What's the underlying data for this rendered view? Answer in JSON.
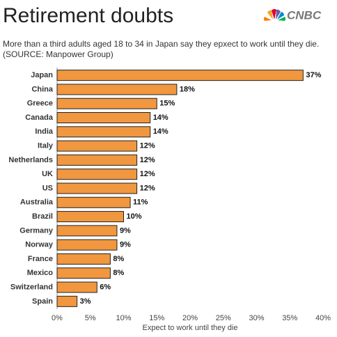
{
  "chart_data": {
    "type": "bar",
    "orientation": "horizontal",
    "title": "Retirement doubts",
    "brand": "CNBC",
    "subtitle": [
      "More than a third adults aged 18 to 34 in Japan say they epxect to work until they die.",
      "(SOURCE: Manpower Group)"
    ],
    "x_label": "Expect to work until they die",
    "categories": [
      "Japan",
      "China",
      "Greece",
      "Canada",
      "India",
      "Italy",
      "Netherlands",
      "UK",
      "US",
      "Australia",
      "Brazil",
      "Germany",
      "Norway",
      "France",
      "Mexico",
      "Switzerland",
      "Spain"
    ],
    "values": [
      37,
      18,
      15,
      14,
      14,
      12,
      12,
      12,
      12,
      11,
      10,
      9,
      9,
      8,
      8,
      6,
      3
    ],
    "value_labels": [
      "37%",
      "18%",
      "15%",
      "14%",
      "14%",
      "12%",
      "12%",
      "12%",
      "12%",
      "11%",
      "10%",
      "9%",
      "9%",
      "8%",
      "8%",
      "6%",
      "3%"
    ],
    "color": "#f0973f",
    "xlim": [
      0,
      40
    ],
    "xticks": [
      {
        "value": 0,
        "label": "0%"
      },
      {
        "value": 5,
        "label": "5%"
      },
      {
        "value": 10,
        "label": "10%"
      },
      {
        "value": 15,
        "label": "15%"
      },
      {
        "value": 20,
        "label": "20%"
      },
      {
        "value": 25,
        "label": "25%"
      },
      {
        "value": 30,
        "label": "30%"
      },
      {
        "value": 35,
        "label": "35%"
      },
      {
        "value": 40,
        "label": "40%"
      }
    ]
  }
}
